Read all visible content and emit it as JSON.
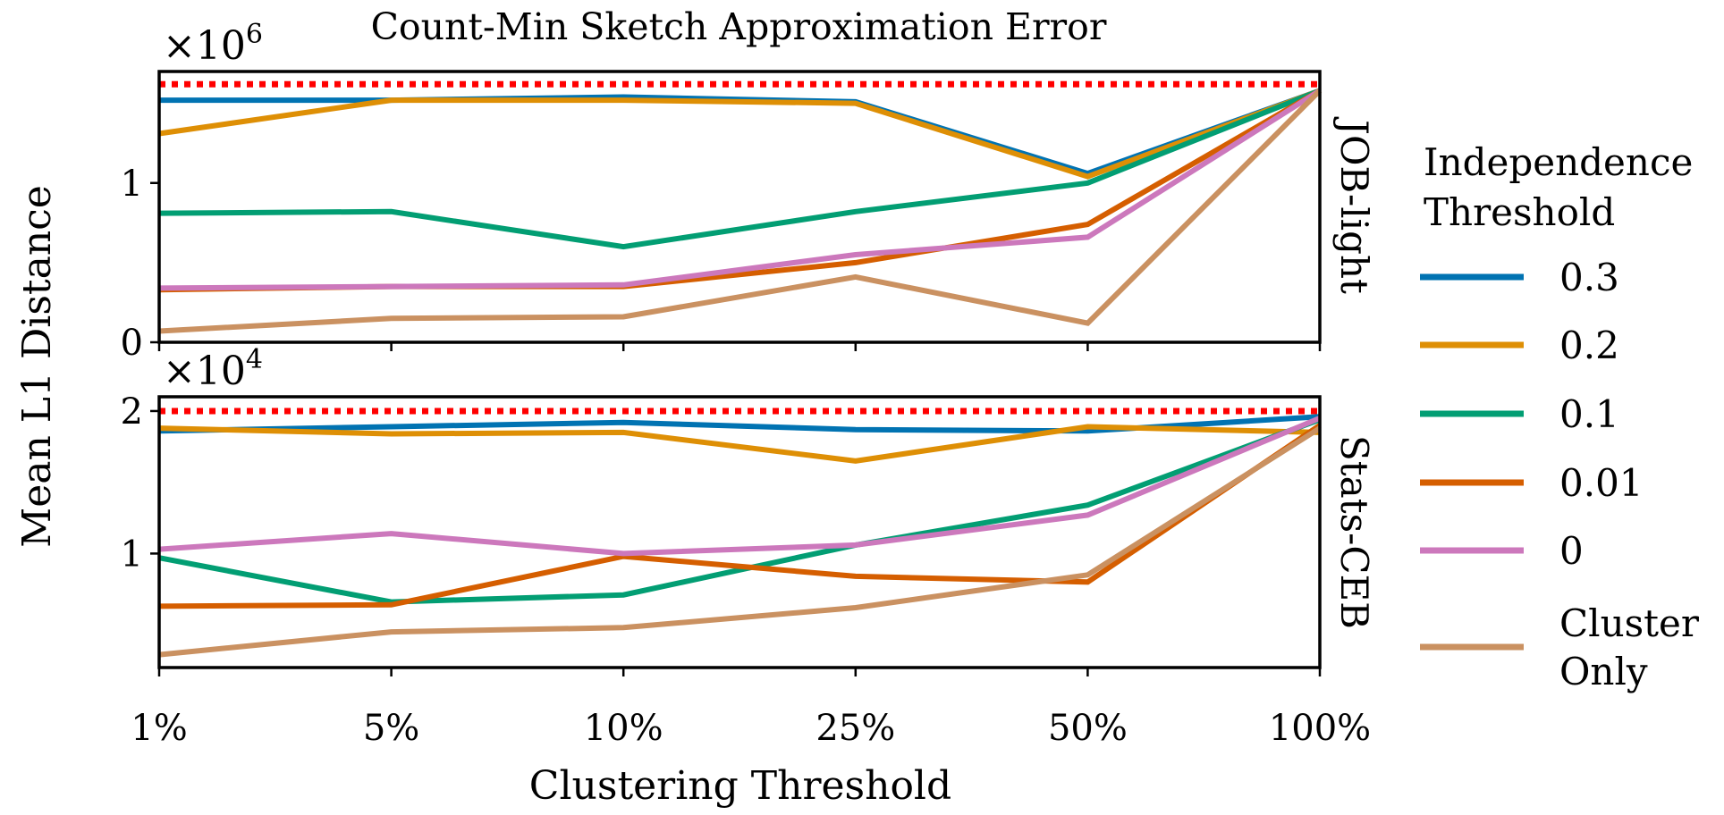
{
  "chart_data": {
    "type": "line",
    "title": "Count-Min Sketch Approximation Error",
    "xlabel": "Clustering Threshold",
    "ylabel": "Mean L1 Distance",
    "categories": [
      "1%",
      "5%",
      "10%",
      "25%",
      "50%",
      "100%"
    ],
    "legend": {
      "title_lines": [
        "Independence",
        "Threshold"
      ],
      "placement": "right",
      "entries": [
        {
          "lines": [
            "0.3"
          ],
          "color": "#0173b2"
        },
        {
          "lines": [
            "0.2"
          ],
          "color": "#de8f05"
        },
        {
          "lines": [
            "0.1"
          ],
          "color": "#029e73"
        },
        {
          "lines": [
            "0.01"
          ],
          "color": "#d55e00"
        },
        {
          "lines": [
            "0"
          ],
          "color": "#cc78bc"
        },
        {
          "lines": [
            "Cluster",
            "Only"
          ],
          "color": "#ca9161"
        }
      ]
    },
    "reference_line_color": "#ff0000",
    "panels": [
      {
        "facet_label": "JOB-light",
        "multiplier_text": "×10",
        "multiplier_exp": "6",
        "ylim": [
          0,
          1.7
        ],
        "yticks": [
          0,
          1
        ],
        "reference_value": 1.62,
        "series": [
          {
            "values": [
              1.52,
              1.52,
              1.54,
              1.51,
              1.06,
              1.58
            ]
          },
          {
            "values": [
              1.31,
              1.52,
              1.52,
              1.5,
              1.04,
              1.58
            ]
          },
          {
            "values": [
              0.81,
              0.82,
              0.6,
              0.82,
              1.0,
              1.58
            ]
          },
          {
            "values": [
              0.33,
              0.35,
              0.35,
              0.5,
              0.74,
              1.58
            ]
          },
          {
            "values": [
              0.34,
              0.35,
              0.36,
              0.55,
              0.66,
              1.58
            ]
          },
          {
            "values": [
              0.07,
              0.15,
              0.16,
              0.41,
              0.12,
              1.58
            ]
          }
        ]
      },
      {
        "facet_label": "Stats-CEB",
        "multiplier_text": "×10",
        "multiplier_exp": "4",
        "ylim": [
          0.2,
          2.1
        ],
        "yticks": [
          1,
          2
        ],
        "reference_value": 2.0,
        "series": [
          {
            "values": [
              1.86,
              1.89,
              1.92,
              1.87,
              1.86,
              1.96
            ]
          },
          {
            "values": [
              1.88,
              1.84,
              1.85,
              1.65,
              1.89,
              1.85
            ]
          },
          {
            "values": [
              0.97,
              0.66,
              0.71,
              1.06,
              1.34,
              1.94
            ]
          },
          {
            "values": [
              0.63,
              0.64,
              0.98,
              0.84,
              0.8,
              1.9
            ]
          },
          {
            "values": [
              1.03,
              1.14,
              1.0,
              1.06,
              1.27,
              1.95
            ]
          },
          {
            "values": [
              0.29,
              0.45,
              0.48,
              0.62,
              0.85,
              1.88
            ]
          }
        ]
      }
    ]
  }
}
